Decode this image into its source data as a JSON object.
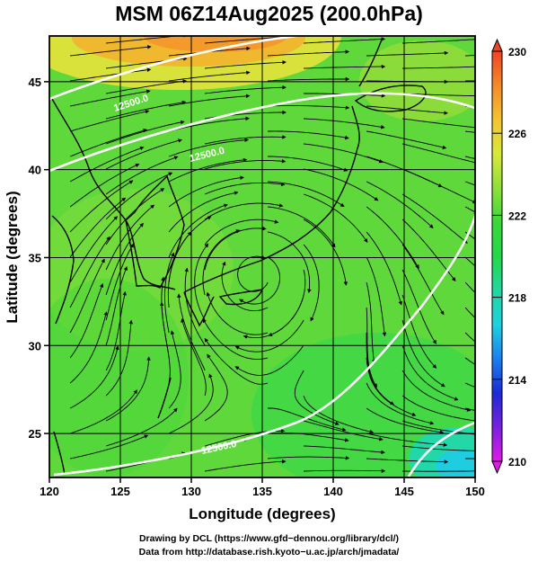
{
  "title": "MSM 06Z14Aug2025 (200.0hPa)",
  "xaxis": {
    "label": "Longitude (degrees)",
    "range": [
      120,
      150
    ],
    "ticks": [
      "120",
      "125",
      "130",
      "135",
      "140",
      "145",
      "150"
    ]
  },
  "yaxis": {
    "label": "Latitude  (degrees)",
    "range": [
      22.5,
      47.6
    ],
    "ticks": [
      "25",
      "30",
      "35",
      "40",
      "45"
    ]
  },
  "colorbar": {
    "range": [
      210,
      230
    ],
    "ticks": [
      "210",
      "214",
      "218",
      "222",
      "226",
      "230"
    ],
    "colors": [
      "#e01ae8",
      "#7a20e0",
      "#1c2ad8",
      "#1a80f0",
      "#1cd2e0",
      "#1fd8a0",
      "#22d84a",
      "#3ad838",
      "#8ee03a",
      "#d8e838",
      "#f4c430",
      "#f58a28",
      "#ee4424"
    ]
  },
  "contours": [
    {
      "label": "12500.0"
    },
    {
      "label": "12500.0"
    },
    {
      "label": "12500.0"
    }
  ],
  "credits": {
    "line1": "Drawing by DCL (https://www.gfd−dennou.org/library/dcl/)",
    "line2": "Data from http://database.rish.kyoto−u.ac.jp/arch/jmadata/"
  }
}
